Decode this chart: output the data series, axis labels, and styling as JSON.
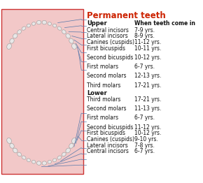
{
  "title": "Permanent teeth",
  "bg_color": "#f2c8c8",
  "border_color": "#cc3333",
  "upper_section": "Upper",
  "lower_section": "Lower",
  "col2_header": "When teeth come in",
  "upper_teeth": [
    [
      "Central incisors",
      "7-9 yrs."
    ],
    [
      "Lateral incisors",
      "8-9 yrs."
    ],
    [
      "Canines (cuspids)",
      "11-12 yrs."
    ],
    [
      "First bicuspids",
      "10-11 yrs."
    ],
    [
      "Second bicuspids",
      "10-12 yrs."
    ],
    [
      "First molars",
      "6-7 yrs."
    ],
    [
      "Second molars",
      "12-13 yrs."
    ],
    [
      "Third molars",
      "17-21 yrs."
    ]
  ],
  "lower_teeth": [
    [
      "Third molars",
      "17-21 yrs."
    ],
    [
      "Second molars",
      "11-13 yrs."
    ],
    [
      "First molars",
      "6-7 yrs."
    ],
    [
      "Second bicuspids",
      "11-12 yrs."
    ],
    [
      "First bicuspids",
      "10-12 yrs."
    ],
    [
      "Canines (cuspids)",
      "9-10 yrs."
    ],
    [
      "Lateral incisors",
      "7-8 yrs."
    ],
    [
      "Central incisors",
      "6-7 yrs."
    ]
  ],
  "upper_extra_space": [
    4,
    5,
    6,
    7
  ],
  "lower_extra_space": [
    1,
    2,
    3
  ],
  "line_color": "#5577aa",
  "tooth_fill": "#e8e8e8",
  "tooth_edge": "#999999",
  "title_color": "#cc2200",
  "text_color": "#111111",
  "fig_width": 2.9,
  "fig_height": 2.62,
  "dpi": 100
}
